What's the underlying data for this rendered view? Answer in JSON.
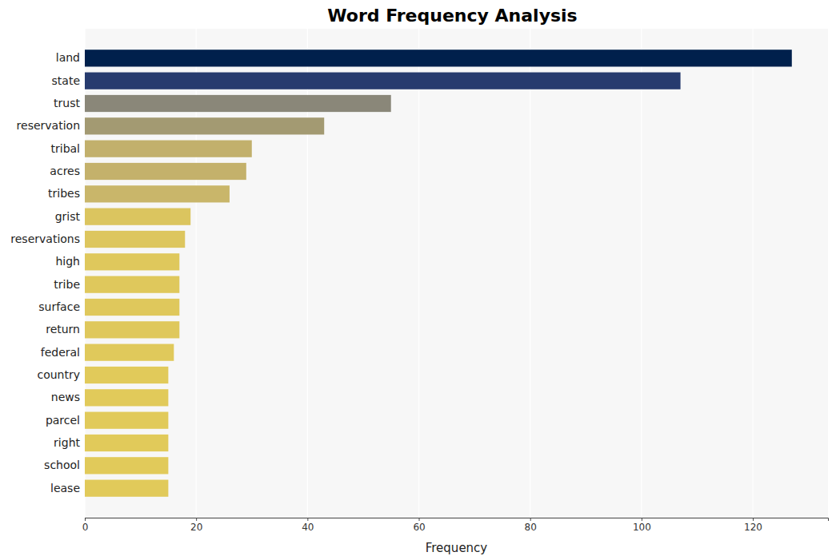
{
  "chart_data": {
    "type": "bar",
    "orientation": "horizontal",
    "title": "Word Frequency Analysis",
    "xlabel": "Frequency",
    "categories": [
      "land",
      "state",
      "trust",
      "reservation",
      "tribal",
      "acres",
      "tribes",
      "grist",
      "reservations",
      "high",
      "tribe",
      "surface",
      "return",
      "federal",
      "country",
      "news",
      "parcel",
      "right",
      "school",
      "lease"
    ],
    "values": [
      127,
      107,
      55,
      43,
      30,
      29,
      26,
      19,
      18,
      17,
      17,
      17,
      17,
      16,
      15,
      15,
      15,
      15,
      15,
      15
    ],
    "colors": [
      "#00204c",
      "#273b6e",
      "#8a8779",
      "#a39a72",
      "#c2b06c",
      "#c4b16b",
      "#c9b66a",
      "#dbc55f",
      "#ddc65e",
      "#dfc85c",
      "#dfc85c",
      "#dfc85c",
      "#dfc85c",
      "#e0c95b",
      "#e1ca5a",
      "#e1ca5a",
      "#e1ca5a",
      "#e1ca5a",
      "#e1ca5a",
      "#e1ca5a"
    ],
    "xlim": [
      0,
      133.5
    ],
    "xticks": [
      0,
      20,
      40,
      60,
      80,
      100,
      120
    ],
    "grid": true
  }
}
